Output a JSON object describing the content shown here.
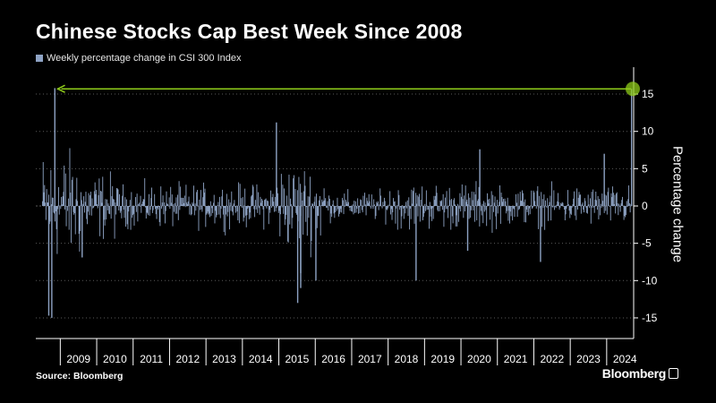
{
  "chart_data": {
    "type": "bar",
    "title": "Chinese Stocks Cap Best Week Since 2008",
    "series": [
      {
        "name": "Weekly percentage change in CSI 300 Index"
      }
    ],
    "ylabel": "Percentage change",
    "ylim": [
      -18,
      19
    ],
    "yticks": [
      15,
      10,
      5,
      0,
      -5,
      -10,
      -15
    ],
    "ytick_labels": [
      "15",
      "10",
      "5",
      "0",
      "-5",
      "-10",
      "-15"
    ],
    "x_categories": [
      "2009",
      "2010",
      "2011",
      "2012",
      "2013",
      "2014",
      "2015",
      "2016",
      "2017",
      "2018",
      "2019",
      "2020",
      "2021",
      "2022",
      "2023",
      "2024"
    ],
    "x_range": [
      "2008-06",
      "2024-10"
    ],
    "grid": "horizontal dotted",
    "annotation": "Latest week (~15.7%) matches the 2008 high, arrow back to 2008",
    "notable_points": [
      {
        "date": "2008-11",
        "value": 15.8
      },
      {
        "date": "2008-09",
        "value": -14.7
      },
      {
        "date": "2008-10",
        "value": -15.0
      },
      {
        "date": "2009-08",
        "value": -6.9
      },
      {
        "date": "2014-12",
        "value": 11.2
      },
      {
        "date": "2015-07",
        "value": -13.0
      },
      {
        "date": "2015-08",
        "value": -11.0
      },
      {
        "date": "2015-08",
        "value": -9.0
      },
      {
        "date": "2016-01",
        "value": -10.0
      },
      {
        "date": "2018-10",
        "value": -10.0
      },
      {
        "date": "2020-07",
        "value": 7.6
      },
      {
        "date": "2020-03",
        "value": -6.0
      },
      {
        "date": "2022-03",
        "value": -7.5
      },
      {
        "date": "2023-12",
        "value": 7.0
      },
      {
        "date": "2024-09",
        "value": 15.7
      }
    ],
    "colors": {
      "bars": "#8ea3c4",
      "annotation": "#8fcc1a",
      "grid": "#5a5a5a"
    }
  },
  "footer": {
    "source": "Source: Bloomberg",
    "brand": "Bloomberg"
  }
}
